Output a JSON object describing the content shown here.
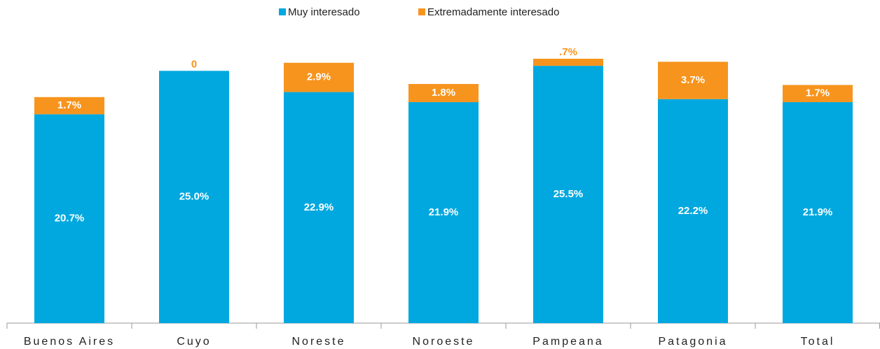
{
  "chart_data": {
    "type": "stacked_bar",
    "categories": [
      "Buenos Aires",
      "Cuyo",
      "Noreste",
      "Noroeste",
      "Pampeana",
      "Patagonia",
      "Total"
    ],
    "series": [
      {
        "name": "Muy interesado",
        "color": "#00a8df",
        "values": [
          20.7,
          25.0,
          22.9,
          21.9,
          25.5,
          22.2,
          21.9
        ],
        "value_labels": [
          "20.7%",
          "25.0%",
          "22.9%",
          "21.9%",
          "25.5%",
          "22.2%",
          "21.9%"
        ]
      },
      {
        "name": "Extremadamente interesado",
        "color": "#f7941d",
        "values": [
          1.7,
          0,
          2.9,
          1.8,
          0.7,
          3.7,
          1.7
        ],
        "value_labels": [
          "1.7%",
          "0",
          "2.9%",
          "1.8%",
          ".7%",
          "3.7%",
          "1.7%"
        ]
      }
    ],
    "legend": "top"
  }
}
